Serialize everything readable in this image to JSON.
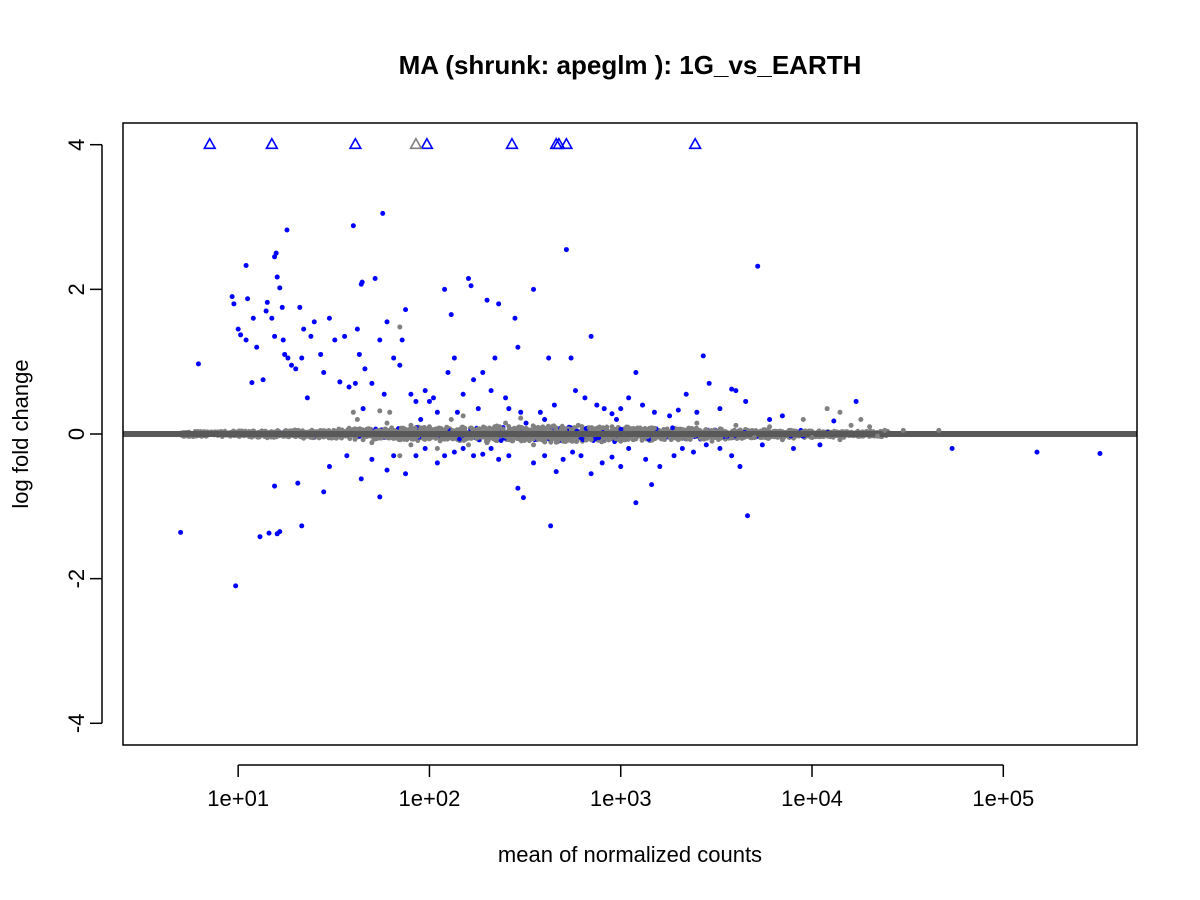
{
  "chart_data": {
    "type": "scatter",
    "title": "MA (shrunk: apeglm ): 1G_vs_EARTH",
    "xlabel": "mean of normalized counts",
    "ylabel": "log fold change",
    "x_scale": "log10",
    "xlim": [
      2.5,
      500000
    ],
    "ylim": [
      -4.3,
      4.3
    ],
    "x_ticks": [
      10,
      100,
      1000,
      10000,
      100000
    ],
    "x_tick_labels": [
      "1e+01",
      "1e+02",
      "1e+03",
      "1e+04",
      "1e+05"
    ],
    "y_ticks": [
      -4,
      -2,
      0,
      2,
      4
    ],
    "y_tick_labels": [
      "-4",
      "-2",
      "0",
      "2",
      "4"
    ],
    "grid": false,
    "legend": "none",
    "colors": {
      "significant": "#0000ff",
      "not_significant": "#808080",
      "zero_line": "#595959"
    },
    "reference_line": {
      "y": 0,
      "color": "#595959"
    },
    "series": [
      {
        "role": "significant",
        "color": "#0000ff",
        "points": [
          [
            6.2,
            0.97
          ],
          [
            5,
            -1.36
          ],
          [
            9.7,
            -2.1
          ],
          [
            9.3,
            1.9
          ],
          [
            9.5,
            1.8
          ],
          [
            10,
            1.45
          ],
          [
            10.3,
            1.37
          ],
          [
            11,
            1.3
          ],
          [
            11.2,
            1.87
          ],
          [
            11,
            2.33
          ],
          [
            11.8,
            0.71
          ],
          [
            12,
            1.6
          ],
          [
            12.5,
            1.2
          ],
          [
            13,
            -1.42
          ],
          [
            13.5,
            0.75
          ],
          [
            14,
            1.7
          ],
          [
            14.2,
            1.82
          ],
          [
            15,
            1.6
          ],
          [
            15.5,
            1.35
          ],
          [
            15.8,
            2.5
          ],
          [
            15.5,
            2.45
          ],
          [
            16,
            2.17
          ],
          [
            16.5,
            2.02
          ],
          [
            17,
            1.75
          ],
          [
            17.2,
            1.3
          ],
          [
            17.5,
            1.1
          ],
          [
            18,
            2.82
          ],
          [
            18.2,
            1.05
          ],
          [
            19,
            0.95
          ],
          [
            20,
            0.9
          ],
          [
            21,
            1.75
          ],
          [
            21.5,
            1.05
          ],
          [
            22,
            1.45
          ],
          [
            23,
            0.5
          ],
          [
            24,
            1.35
          ],
          [
            25,
            1.55
          ],
          [
            27,
            1.1
          ],
          [
            28,
            0.85
          ],
          [
            30,
            1.6
          ],
          [
            32,
            1.3
          ],
          [
            34,
            0.72
          ],
          [
            36,
            1.35
          ],
          [
            38,
            0.65
          ],
          [
            40,
            2.88
          ],
          [
            41,
            0.7
          ],
          [
            42,
            1.45
          ],
          [
            43,
            1.1
          ],
          [
            44,
            2.07
          ],
          [
            44.5,
            2.1
          ],
          [
            45,
            0.35
          ],
          [
            46,
            0.9
          ],
          [
            50,
            0.7
          ],
          [
            52,
            2.15
          ],
          [
            55,
            1.3
          ],
          [
            57,
            3.05
          ],
          [
            58,
            0.55
          ],
          [
            60,
            1.55
          ],
          [
            65,
            1.05
          ],
          [
            70,
            0.95
          ],
          [
            72,
            1.3
          ],
          [
            75,
            1.72
          ],
          [
            80,
            0.55
          ],
          [
            85,
            0.45
          ],
          [
            90,
            0.2
          ],
          [
            95,
            0.6
          ],
          [
            100,
            0.45
          ],
          [
            105,
            0.5
          ],
          [
            110,
            0.3
          ],
          [
            120,
            2.0
          ],
          [
            125,
            0.85
          ],
          [
            130,
            1.65
          ],
          [
            135,
            1.05
          ],
          [
            140,
            0.3
          ],
          [
            150,
            0.55
          ],
          [
            160,
            2.15
          ],
          [
            165,
            2.05
          ],
          [
            170,
            0.75
          ],
          [
            180,
            0.35
          ],
          [
            190,
            0.85
          ],
          [
            200,
            1.85
          ],
          [
            210,
            0.6
          ],
          [
            220,
            1.05
          ],
          [
            230,
            1.8
          ],
          [
            250,
            0.5
          ],
          [
            260,
            0.35
          ],
          [
            280,
            1.6
          ],
          [
            290,
            1.2
          ],
          [
            300,
            0.3
          ],
          [
            320,
            0.15
          ],
          [
            350,
            2.0
          ],
          [
            380,
            0.3
          ],
          [
            400,
            0.2
          ],
          [
            420,
            1.05
          ],
          [
            450,
            0.4
          ],
          [
            520,
            2.55
          ],
          [
            550,
            1.05
          ],
          [
            580,
            0.6
          ],
          [
            650,
            0.5
          ],
          [
            700,
            1.35
          ],
          [
            750,
            0.4
          ],
          [
            820,
            0.35
          ],
          [
            900,
            0.28
          ],
          [
            950,
            0.2
          ],
          [
            1000,
            0.35
          ],
          [
            1100,
            0.5
          ],
          [
            1200,
            0.85
          ],
          [
            1300,
            0.4
          ],
          [
            1500,
            0.3
          ],
          [
            1800,
            0.25
          ],
          [
            2000,
            0.33
          ],
          [
            2200,
            0.55
          ],
          [
            2500,
            0.3
          ],
          [
            2700,
            1.08
          ],
          [
            2900,
            0.7
          ],
          [
            3300,
            0.35
          ],
          [
            3800,
            0.62
          ],
          [
            4000,
            0.6
          ],
          [
            4500,
            0.45
          ],
          [
            5200,
            2.32
          ],
          [
            6000,
            0.2
          ],
          [
            7000,
            0.25
          ],
          [
            13000,
            0.18
          ],
          [
            17000,
            0.45
          ],
          [
            15.5,
            -0.72
          ],
          [
            16.5,
            -1.35
          ],
          [
            16,
            -1.38
          ],
          [
            14.5,
            -1.37
          ],
          [
            20.5,
            -0.68
          ],
          [
            21.5,
            -1.27
          ],
          [
            28,
            -0.8
          ],
          [
            30,
            -0.45
          ],
          [
            37,
            -0.3
          ],
          [
            44,
            -0.62
          ],
          [
            50,
            -0.35
          ],
          [
            55,
            -0.87
          ],
          [
            60,
            -0.5
          ],
          [
            65,
            -0.3
          ],
          [
            75,
            -0.55
          ],
          [
            85,
            -0.3
          ],
          [
            95,
            -0.2
          ],
          [
            110,
            -0.4
          ],
          [
            120,
            -0.3
          ],
          [
            135,
            -0.25
          ],
          [
            150,
            -0.2
          ],
          [
            170,
            -0.3
          ],
          [
            190,
            -0.28
          ],
          [
            210,
            -0.2
          ],
          [
            230,
            -0.35
          ],
          [
            260,
            -0.3
          ],
          [
            290,
            -0.75
          ],
          [
            310,
            -0.88
          ],
          [
            350,
            -0.4
          ],
          [
            400,
            -0.3
          ],
          [
            430,
            -1.27
          ],
          [
            460,
            -0.52
          ],
          [
            500,
            -0.35
          ],
          [
            560,
            -0.25
          ],
          [
            620,
            -0.3
          ],
          [
            700,
            -0.55
          ],
          [
            800,
            -0.4
          ],
          [
            900,
            -0.32
          ],
          [
            1000,
            -0.45
          ],
          [
            1100,
            -0.2
          ],
          [
            1200,
            -0.95
          ],
          [
            1350,
            -0.35
          ],
          [
            1450,
            -0.7
          ],
          [
            1600,
            -0.45
          ],
          [
            1900,
            -0.3
          ],
          [
            2100,
            -0.2
          ],
          [
            2400,
            -0.25
          ],
          [
            2800,
            -0.15
          ],
          [
            3300,
            -0.2
          ],
          [
            3800,
            -0.3
          ],
          [
            4200,
            -0.45
          ],
          [
            4600,
            -1.13
          ],
          [
            5500,
            -0.15
          ],
          [
            8000,
            -0.2
          ],
          [
            11000,
            -0.15
          ],
          [
            54000,
            -0.2
          ],
          [
            150000,
            -0.25
          ],
          [
            320000,
            -0.27
          ]
        ]
      },
      {
        "role": "not_significant",
        "color": "#808080",
        "points": [
          [
            38,
            0.08
          ],
          [
            40,
            0.3
          ],
          [
            42,
            0.2
          ],
          [
            55,
            0.32
          ],
          [
            60,
            0.15
          ],
          [
            62,
            0.3
          ],
          [
            70,
            1.48
          ],
          [
            80,
            0.12
          ],
          [
            100,
            0.1
          ],
          [
            130,
            0.2
          ],
          [
            150,
            0.25
          ],
          [
            250,
            0.15
          ],
          [
            300,
            0.22
          ],
          [
            450,
            0.1
          ],
          [
            600,
            0.12
          ],
          [
            900,
            0.1
          ],
          [
            1500,
            0.08
          ],
          [
            2500,
            0.15
          ],
          [
            4000,
            0.12
          ],
          [
            6000,
            0.1
          ],
          [
            9000,
            0.2
          ],
          [
            12000,
            0.35
          ],
          [
            14000,
            0.3
          ],
          [
            16000,
            0.12
          ],
          [
            18000,
            0.2
          ],
          [
            20000,
            0.1
          ],
          [
            24000,
            0.05
          ],
          [
            30000,
            0.05
          ],
          [
            46000,
            0.05
          ],
          [
            45,
            -0.08
          ],
          [
            50,
            -0.12
          ],
          [
            70,
            -0.3
          ],
          [
            80,
            -0.15
          ],
          [
            110,
            -0.2
          ],
          [
            160,
            -0.15
          ],
          [
            200,
            -0.12
          ],
          [
            260,
            -0.08
          ],
          [
            350,
            -0.15
          ],
          [
            500,
            -0.1
          ],
          [
            700,
            -0.08
          ],
          [
            1000,
            -0.1
          ],
          [
            2000,
            -0.08
          ],
          [
            3000,
            -0.1
          ],
          [
            5000,
            -0.05
          ],
          [
            7000,
            -0.08
          ],
          [
            10000,
            -0.05
          ],
          [
            14000,
            -0.08
          ],
          [
            22000,
            -0.03
          ]
        ]
      },
      {
        "role": "out_of_range",
        "color": "#0000ff",
        "marker": "triangle",
        "points": [
          [
            7.1,
            4
          ],
          [
            15,
            4
          ],
          [
            41,
            4
          ],
          [
            97,
            4
          ],
          [
            270,
            4
          ],
          [
            460,
            4
          ],
          [
            475,
            4
          ],
          [
            520,
            4
          ],
          [
            2450,
            4
          ]
        ]
      },
      {
        "role": "out_of_range_ns",
        "color": "#808080",
        "marker": "triangle",
        "points": [
          [
            85,
            4
          ]
        ]
      }
    ]
  }
}
